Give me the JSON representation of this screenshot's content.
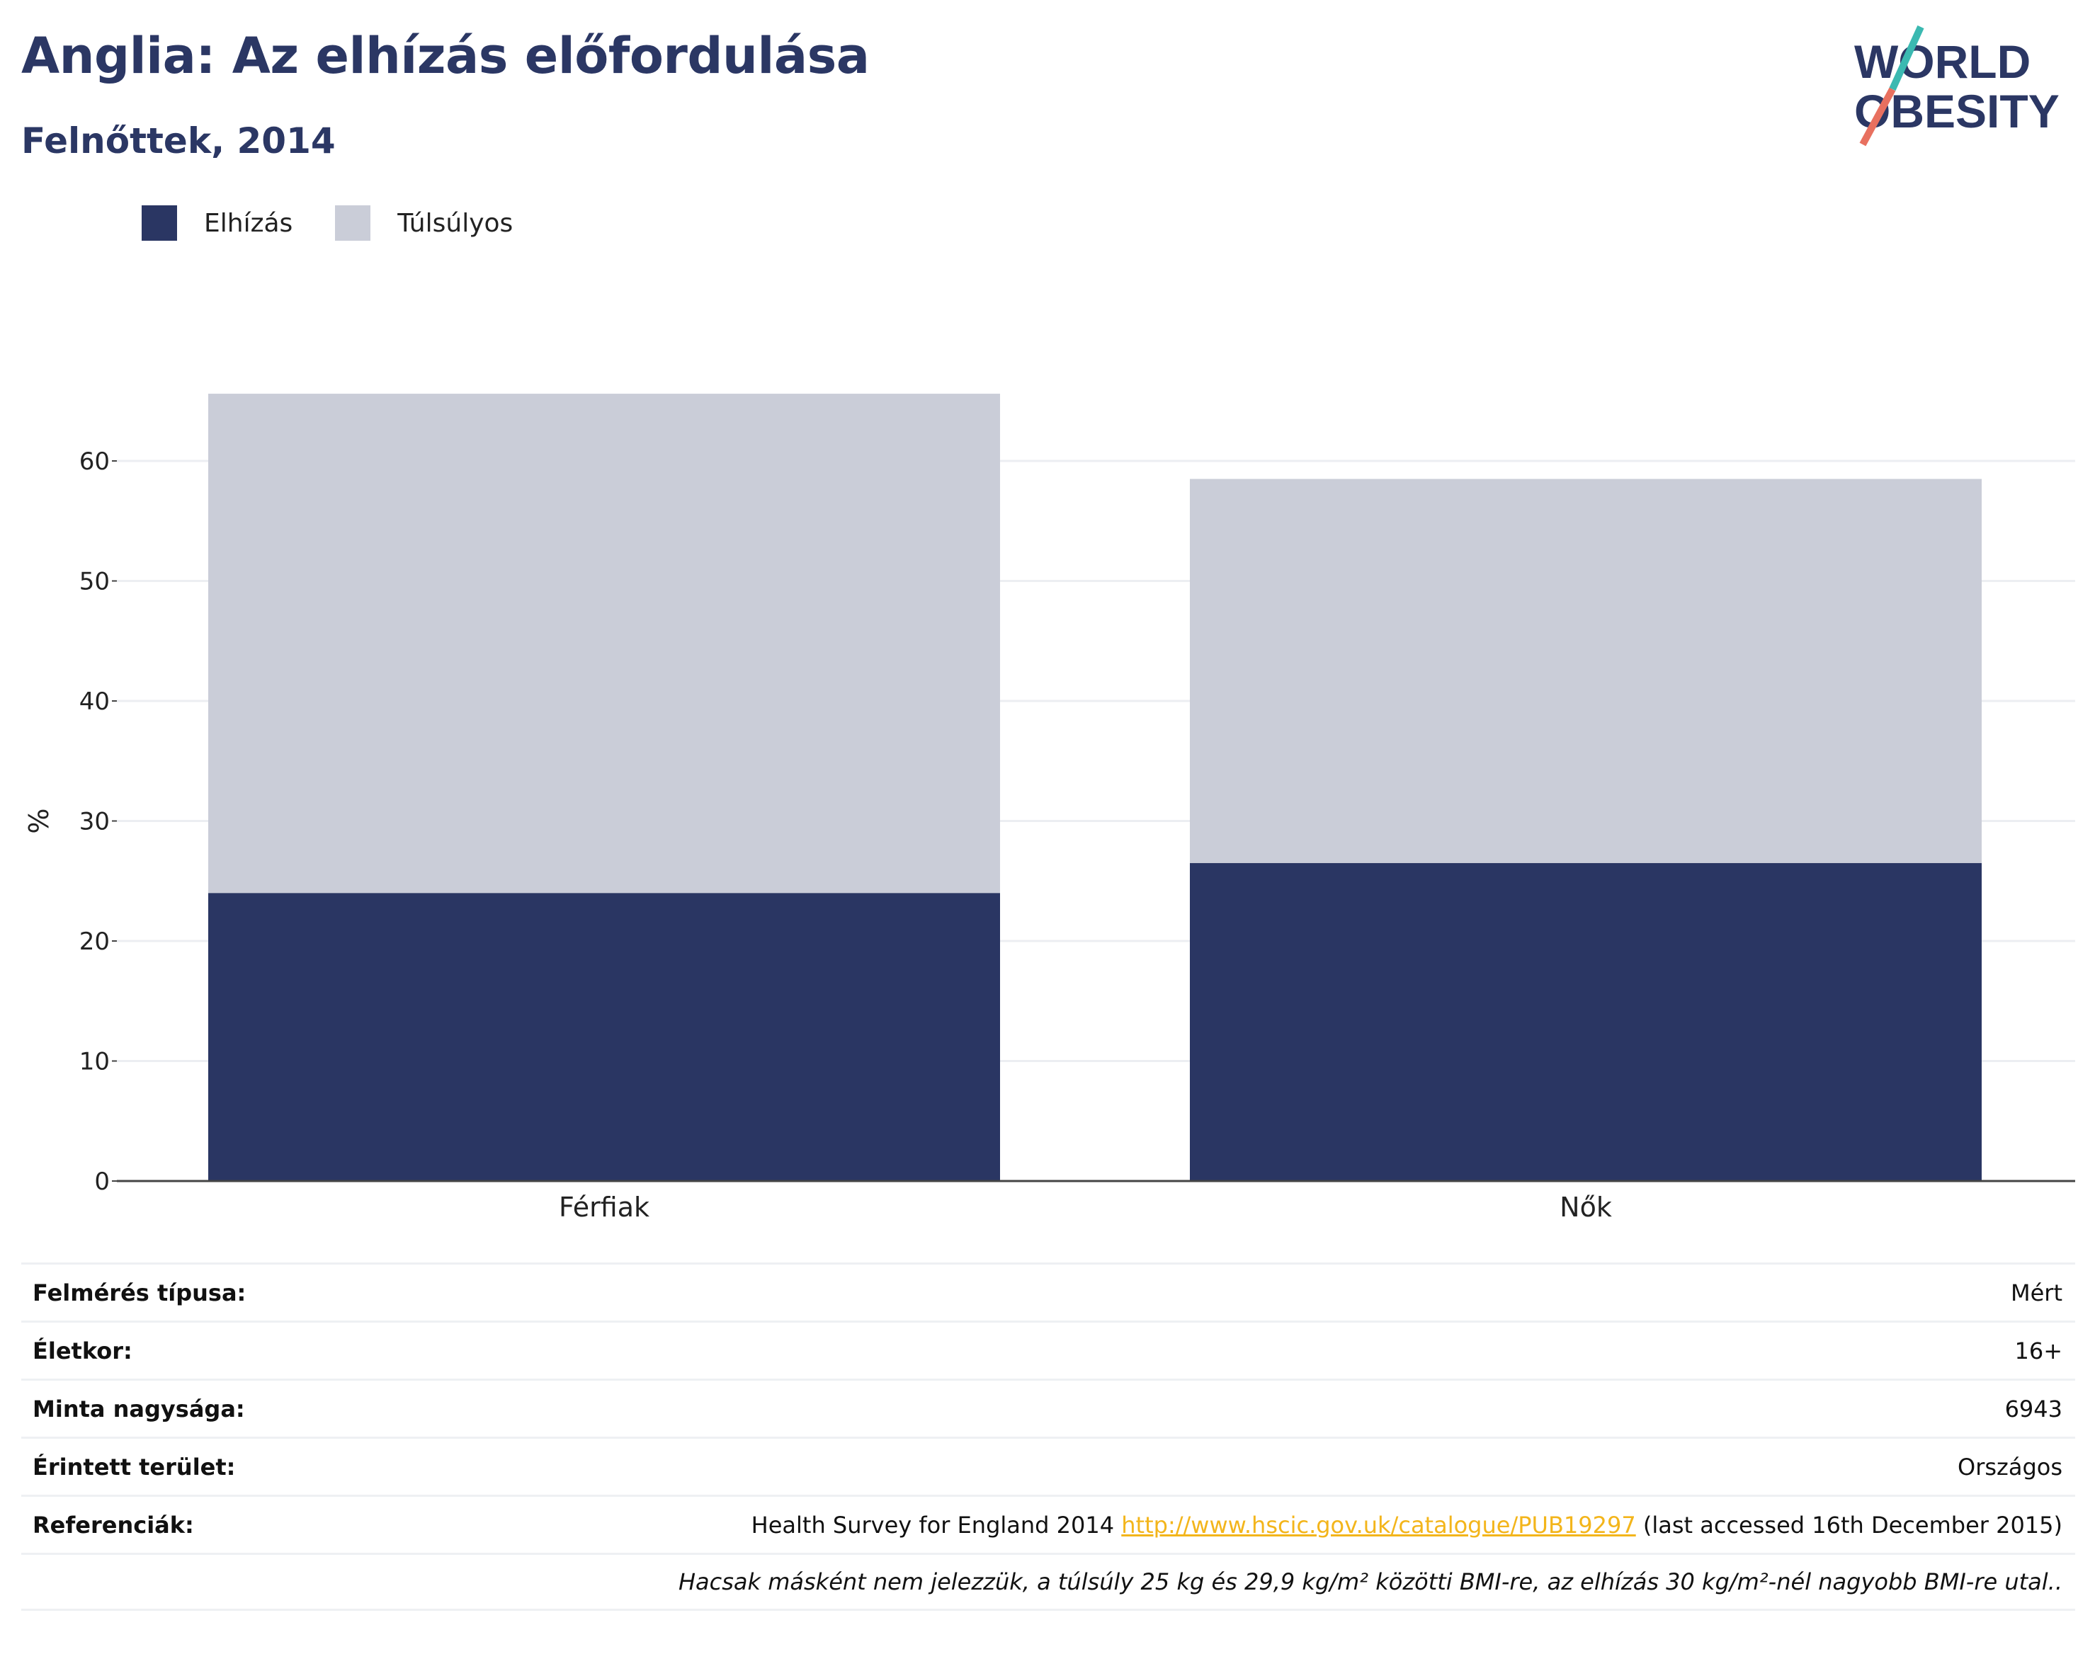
{
  "title": "Anglia: Az elhízás előfordulása",
  "subtitle": "Felnőttek, 2014",
  "logo": {
    "line1": "WORLD",
    "line2": "OBESITY"
  },
  "colors": {
    "obese": "#2a3663",
    "overweight": "#cacdd8",
    "title": "#2b3764",
    "link": "#f3b51b",
    "logo_teal": "#3bb9b1",
    "logo_coral": "#e8705f"
  },
  "legend": [
    {
      "label": "Elhízás",
      "color": "#2a3663"
    },
    {
      "label": "Túlsúlyos",
      "color": "#cacdd8"
    }
  ],
  "chart_data": {
    "type": "bar",
    "stacked": true,
    "categories": [
      "Férfiak",
      "Nők"
    ],
    "series": [
      {
        "name": "Elhízás",
        "values": [
          24.0,
          26.5
        ]
      },
      {
        "name": "Túlsúlyos",
        "values": [
          41.6,
          32.0
        ]
      }
    ],
    "ylabel": "%",
    "ylim": [
      0,
      70
    ],
    "yticks": [
      0,
      10,
      20,
      30,
      40,
      50,
      60
    ],
    "grid": true,
    "legend_position": "top-left"
  },
  "info_table": [
    {
      "key": "Felmérés típusa:",
      "value": "Mért"
    },
    {
      "key": "Életkor:",
      "value": "16+"
    },
    {
      "key": "Minta nagysága:",
      "value": "6943"
    },
    {
      "key": "Érintett terület:",
      "value": "Országos"
    }
  ],
  "references": {
    "key": "Referenciák:",
    "prefix": "Health Survey for England 2014 ",
    "link": "http://www.hscic.gov.uk/catalogue/PUB19297",
    "suffix": " (last accessed 16th December 2015)"
  },
  "note": "Hacsak másként nem jelezzük, a túlsúly 25 kg és 29,9 kg/m² közötti BMI-re, az elhízás 30 kg/m²-nél nagyobb BMI-re utal.."
}
